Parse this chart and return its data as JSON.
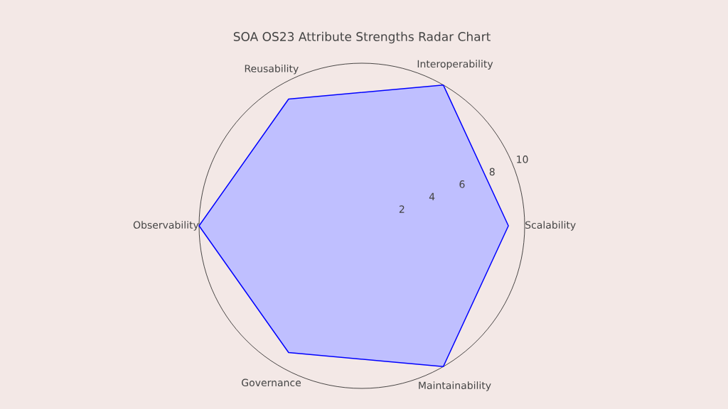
{
  "chart_data": {
    "type": "radar",
    "title": "SOA OS23 Attribute Strengths Radar Chart",
    "categories": [
      "Interoperability",
      "Scalability",
      "Maintainability",
      "Governance",
      "Observability",
      "Reusability"
    ],
    "series": [
      {
        "color": "#0000ff",
        "values": [
          10,
          9,
          10,
          9,
          10,
          9
        ]
      }
    ],
    "ylim": [
      0,
      10
    ],
    "yticks": [
      2,
      4,
      6,
      8,
      10
    ],
    "grid": false
  }
}
